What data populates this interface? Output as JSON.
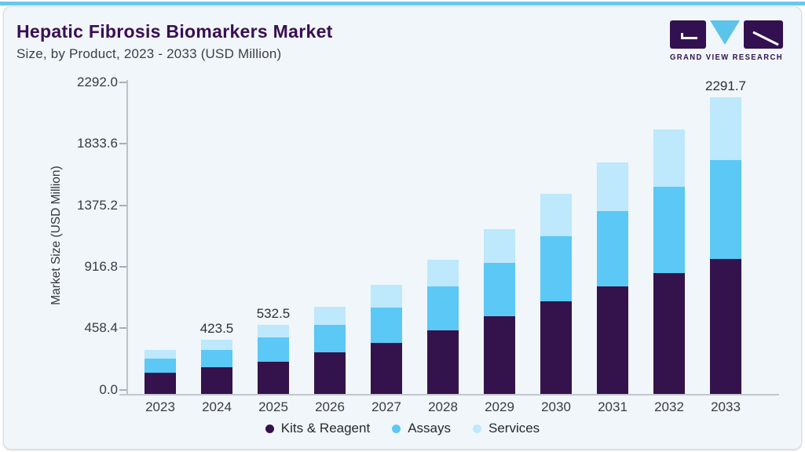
{
  "header": {
    "title": "Hepatic Fibrosis Biomarkers Market",
    "subtitle": "Size, by Product, 2023 - 2033 (USD Million)"
  },
  "brand": {
    "name": "GRAND VIEW RESEARCH",
    "purple": "#331150",
    "blue": "#5BC4E8"
  },
  "chart_data": {
    "type": "bar",
    "stacked": true,
    "title": "Hepatic Fibrosis Biomarkers Market Size, by Product, 2023 - 2033 (USD Million)",
    "categories": [
      "2023",
      "2024",
      "2025",
      "2026",
      "2027",
      "2028",
      "2029",
      "2030",
      "2031",
      "2032",
      "2033"
    ],
    "series": [
      {
        "name": "Kits & Reagent",
        "color": "#34124B",
        "values": [
          165.2,
          209.0,
          253.0,
          323.8,
          393.8,
          492.7,
          601.2,
          717.6,
          832.1,
          932.8,
          1041.0
        ]
      },
      {
        "name": "Assays",
        "color": "#5BC8F5",
        "values": [
          107.9,
          133.0,
          183.0,
          211.1,
          277.3,
          341.3,
          413.6,
          500.4,
          583.2,
          669.4,
          764.0
        ]
      },
      {
        "name": "Services",
        "color": "#BEE8FB",
        "values": [
          70.4,
          81.5,
          96.5,
          140.5,
          173.1,
          205.0,
          261.7,
          325.7,
          371.7,
          437.8,
          486.7
        ]
      }
    ],
    "totals": [
      343.5,
      423.5,
      532.5,
      675.4,
      844.2,
      1039.0,
      1276.5,
      1543.7,
      1787.0,
      2040.0,
      2291.7
    ],
    "value_labels": [
      "",
      "423.5",
      "532.5",
      "",
      "",
      "",
      "",
      "",
      "",
      "",
      "2291.7"
    ],
    "ylabel": "Market Size (USD Million)",
    "ytick_labels": [
      "0.0",
      "458.4",
      "916.8",
      "1375.2",
      "1833.6",
      "2292.0"
    ],
    "ylim": [
      0,
      2292
    ],
    "grid": false,
    "legend_position": "bottom"
  }
}
